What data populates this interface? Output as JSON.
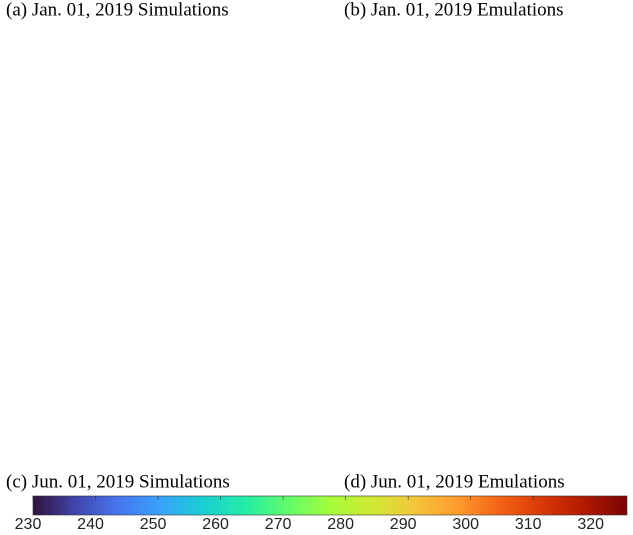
{
  "panels": [
    {
      "title": "(a) Jan. 01, 2019 Simulations"
    },
    {
      "title": "(b) Jan. 01, 2019 Emulations"
    },
    {
      "title": "(c) Jun. 01, 2019 Simulations"
    },
    {
      "title": "(d) Jun. 01, 2019 Emulations"
    }
  ],
  "colorbar": {
    "colormap": "turbo",
    "lim": [
      230,
      325
    ],
    "ticks": [
      230,
      240,
      250,
      260,
      270,
      280,
      290,
      300,
      310,
      320
    ]
  }
}
